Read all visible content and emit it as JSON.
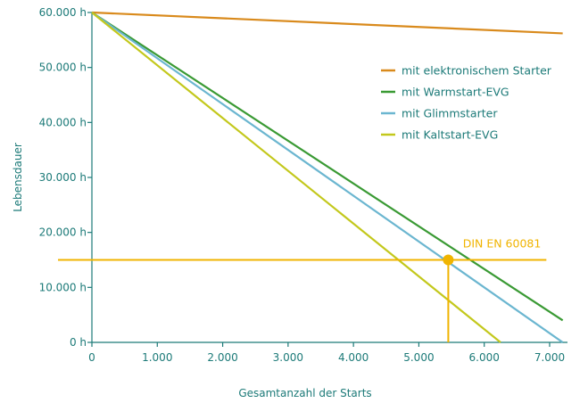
{
  "chart_data": {
    "type": "line",
    "title": "",
    "xlabel": "Gesamtanzahl der Starts",
    "ylabel": "Lebensdauer",
    "xlim": [
      0,
      7200
    ],
    "ylim": [
      0,
      60000
    ],
    "xticks": [
      0,
      1000,
      2000,
      3000,
      4000,
      5000,
      6000,
      7000
    ],
    "xtick_labels": [
      "0",
      "1.000",
      "2.000",
      "3.000",
      "4.000",
      "5.000",
      "6.000",
      "7.000"
    ],
    "yticks": [
      0,
      10000,
      20000,
      30000,
      40000,
      50000,
      60000
    ],
    "ytick_labels": [
      "0 h",
      "10.000 h",
      "20.000 h",
      "30.000 h",
      "40.000 h",
      "50.000 h",
      "60.000 h"
    ],
    "grid": false,
    "legend_position": "top-right",
    "series": [
      {
        "name": "mit elektronischem Starter",
        "color": "#d98a1c",
        "x": [
          0,
          7200
        ],
        "y": [
          60000,
          56200
        ]
      },
      {
        "name": "mit Warmstart-EVG",
        "color": "#3a9a34",
        "x": [
          0,
          7200
        ],
        "y": [
          60000,
          4000
        ]
      },
      {
        "name": "mit Glimmstarter",
        "color": "#6bb6d0",
        "x": [
          0,
          7200
        ],
        "y": [
          60000,
          0
        ]
      },
      {
        "name": "mit Kaltstart-EVG",
        "color": "#c3c81c",
        "x": [
          0,
          6250
        ],
        "y": [
          60000,
          0
        ]
      }
    ],
    "reference": {
      "label": "DIN EN 60081",
      "color": "#f0b400",
      "y": 15000,
      "x_from": 0,
      "x_to": 6950,
      "point_x": 5450,
      "point_y": 15000
    }
  }
}
